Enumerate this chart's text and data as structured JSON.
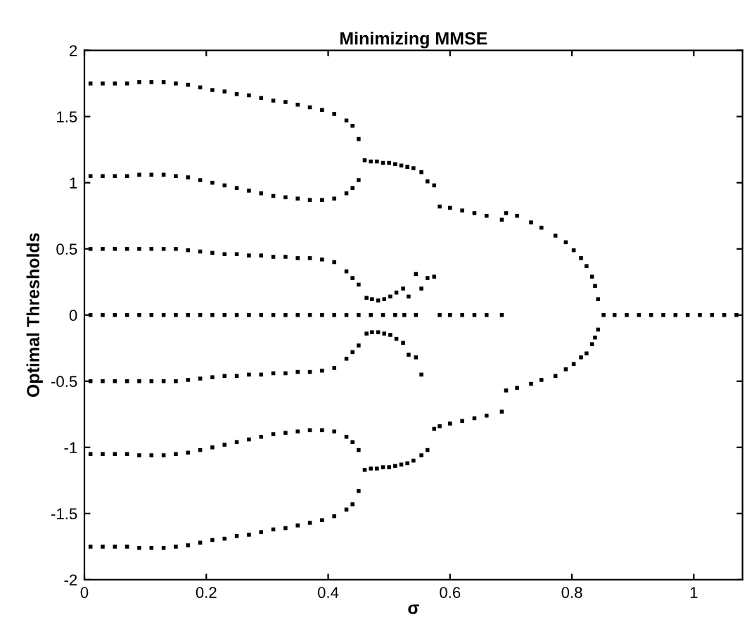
{
  "chart_data": {
    "type": "scatter",
    "title": "Minimizing MMSE",
    "xlabel": "σ",
    "ylabel": "Optimal Thresholds",
    "xlim": [
      0,
      1.08
    ],
    "ylim": [
      -2,
      2
    ],
    "xticks": [
      0,
      0.2,
      0.4,
      0.6,
      0.8,
      1
    ],
    "yticks": [
      -2,
      -1.5,
      -1,
      -0.5,
      0,
      0.5,
      1,
      1.5,
      2
    ],
    "grid": false,
    "legend": false,
    "marker": "square",
    "series": [
      {
        "color": "#000000",
        "x": [
          0.01,
          0.03,
          0.05,
          0.07,
          0.09,
          0.11,
          0.13,
          0.15,
          0.17,
          0.19,
          0.21,
          0.23,
          0.25,
          0.27,
          0.29,
          0.31,
          0.33,
          0.35,
          0.37,
          0.39,
          0.41,
          0.43,
          0.44,
          0.45
        ],
        "values": [
          1.75,
          1.75,
          1.75,
          1.75,
          1.76,
          1.76,
          1.76,
          1.75,
          1.74,
          1.72,
          1.7,
          1.69,
          1.67,
          1.66,
          1.64,
          1.62,
          1.61,
          1.59,
          1.57,
          1.55,
          1.52,
          1.47,
          1.43,
          1.33
        ]
      },
      {
        "color": "#000000",
        "x": [
          0.01,
          0.03,
          0.05,
          0.07,
          0.09,
          0.11,
          0.13,
          0.15,
          0.17,
          0.19,
          0.21,
          0.23,
          0.25,
          0.27,
          0.29,
          0.31,
          0.33,
          0.35,
          0.37,
          0.39,
          0.41,
          0.43,
          0.44,
          0.45
        ],
        "values": [
          1.05,
          1.05,
          1.05,
          1.05,
          1.06,
          1.06,
          1.06,
          1.05,
          1.04,
          1.02,
          1.0,
          0.98,
          0.96,
          0.94,
          0.92,
          0.9,
          0.89,
          0.88,
          0.87,
          0.87,
          0.88,
          0.92,
          0.96,
          1.02
        ]
      },
      {
        "color": "#000000",
        "x": [
          0.01,
          0.03,
          0.05,
          0.07,
          0.09,
          0.11,
          0.13,
          0.15,
          0.17,
          0.19,
          0.21,
          0.23,
          0.25,
          0.27,
          0.29,
          0.31,
          0.33,
          0.35,
          0.37,
          0.39,
          0.41,
          0.43,
          0.44,
          0.45
        ],
        "values": [
          0.5,
          0.5,
          0.5,
          0.5,
          0.5,
          0.5,
          0.5,
          0.5,
          0.49,
          0.48,
          0.47,
          0.46,
          0.46,
          0.45,
          0.45,
          0.44,
          0.44,
          0.43,
          0.43,
          0.42,
          0.4,
          0.33,
          0.28,
          0.23
        ]
      },
      {
        "color": "#000000",
        "x": [
          0.01,
          0.03,
          0.05,
          0.07,
          0.09,
          0.11,
          0.13,
          0.15,
          0.17,
          0.19,
          0.21,
          0.23,
          0.25,
          0.27,
          0.29,
          0.31,
          0.33,
          0.35,
          0.37,
          0.39,
          0.41,
          0.43,
          0.44,
          0.45
        ],
        "values": [
          -0.5,
          -0.5,
          -0.5,
          -0.5,
          -0.5,
          -0.5,
          -0.5,
          -0.5,
          -0.49,
          -0.48,
          -0.47,
          -0.46,
          -0.46,
          -0.45,
          -0.45,
          -0.44,
          -0.44,
          -0.43,
          -0.43,
          -0.42,
          -0.4,
          -0.33,
          -0.28,
          -0.23
        ]
      },
      {
        "color": "#000000",
        "x": [
          0.01,
          0.03,
          0.05,
          0.07,
          0.09,
          0.11,
          0.13,
          0.15,
          0.17,
          0.19,
          0.21,
          0.23,
          0.25,
          0.27,
          0.29,
          0.31,
          0.33,
          0.35,
          0.37,
          0.39,
          0.41,
          0.43,
          0.44,
          0.45
        ],
        "values": [
          -1.05,
          -1.05,
          -1.05,
          -1.05,
          -1.06,
          -1.06,
          -1.06,
          -1.05,
          -1.04,
          -1.02,
          -1.0,
          -0.98,
          -0.96,
          -0.94,
          -0.92,
          -0.9,
          -0.89,
          -0.88,
          -0.87,
          -0.87,
          -0.88,
          -0.92,
          -0.96,
          -1.02
        ]
      },
      {
        "color": "#000000",
        "x": [
          0.01,
          0.03,
          0.05,
          0.07,
          0.09,
          0.11,
          0.13,
          0.15,
          0.17,
          0.19,
          0.21,
          0.23,
          0.25,
          0.27,
          0.29,
          0.31,
          0.33,
          0.35,
          0.37,
          0.39,
          0.41,
          0.43,
          0.44,
          0.45
        ],
        "values": [
          -1.75,
          -1.75,
          -1.75,
          -1.75,
          -1.76,
          -1.76,
          -1.76,
          -1.75,
          -1.74,
          -1.72,
          -1.7,
          -1.69,
          -1.67,
          -1.66,
          -1.64,
          -1.62,
          -1.61,
          -1.59,
          -1.57,
          -1.55,
          -1.52,
          -1.47,
          -1.43,
          -1.33
        ]
      },
      {
        "color": "#000000",
        "x": [
          0.46,
          0.47,
          0.48,
          0.49,
          0.5,
          0.51,
          0.52,
          0.53,
          0.54,
          0.553,
          0.563,
          0.574
        ],
        "values": [
          1.17,
          1.16,
          1.16,
          1.15,
          1.15,
          1.14,
          1.13,
          1.12,
          1.11,
          1.08,
          1.01,
          0.98
        ]
      },
      {
        "color": "#000000",
        "x": [
          0.46,
          0.47,
          0.48,
          0.49,
          0.5,
          0.51,
          0.52,
          0.53,
          0.54,
          0.553,
          0.563,
          0.574
        ],
        "values": [
          -1.17,
          -1.16,
          -1.16,
          -1.15,
          -1.15,
          -1.14,
          -1.13,
          -1.12,
          -1.1,
          -1.06,
          -1.02,
          -0.86
        ]
      },
      {
        "color": "#000000",
        "x": [
          0.463,
          0.472,
          0.482,
          0.492,
          0.502,
          0.512,
          0.523,
          0.532,
          0.544,
          0.553,
          0.563,
          0.574
        ],
        "values": [
          0.13,
          0.12,
          0.11,
          0.12,
          0.14,
          0.17,
          0.2,
          0.14,
          0.31,
          0.2,
          0.28,
          0.29
        ]
      },
      {
        "color": "#000000",
        "x": [
          0.463,
          0.472,
          0.482,
          0.492,
          0.502,
          0.512,
          0.523,
          0.532,
          0.544,
          0.553
        ],
        "values": [
          -0.14,
          -0.13,
          -0.13,
          -0.14,
          -0.15,
          -0.18,
          -0.21,
          -0.3,
          -0.32,
          -0.45
        ]
      },
      {
        "color": "#000000",
        "x": [
          0.583,
          0.6,
          0.62,
          0.64,
          0.66,
          0.685,
          0.692,
          0.71,
          0.733,
          0.75,
          0.773,
          0.79,
          0.803,
          0.815,
          0.824,
          0.833,
          0.838,
          0.843
        ],
        "values": [
          0.82,
          0.81,
          0.79,
          0.77,
          0.75,
          0.72,
          0.77,
          0.75,
          0.7,
          0.66,
          0.6,
          0.55,
          0.49,
          0.43,
          0.37,
          0.29,
          0.22,
          0.12
        ]
      },
      {
        "color": "#000000",
        "x": [
          0.583,
          0.6,
          0.62,
          0.64,
          0.66,
          0.685,
          0.692,
          0.71,
          0.733,
          0.75,
          0.773,
          0.79,
          0.803,
          0.815,
          0.824,
          0.833,
          0.838,
          0.843
        ],
        "values": [
          -0.84,
          -0.82,
          -0.8,
          -0.78,
          -0.76,
          -0.73,
          -0.57,
          -0.55,
          -0.52,
          -0.49,
          -0.46,
          -0.41,
          -0.37,
          -0.32,
          -0.29,
          -0.22,
          -0.17,
          -0.11
        ]
      },
      {
        "color": "#000000",
        "x": [
          0.01,
          0.03,
          0.05,
          0.07,
          0.09,
          0.11,
          0.13,
          0.15,
          0.17,
          0.19,
          0.21,
          0.23,
          0.25,
          0.27,
          0.29,
          0.31,
          0.33,
          0.35,
          0.37,
          0.39,
          0.41,
          0.43,
          0.45,
          0.47,
          0.49,
          0.51,
          0.525,
          0.544,
          0.583,
          0.6,
          0.62,
          0.64,
          0.66,
          0.685,
          0.852,
          0.87,
          0.89,
          0.91,
          0.93,
          0.95,
          0.97,
          0.99,
          1.01,
          1.03,
          1.05,
          1.07
        ],
        "values": [
          0,
          0,
          0,
          0,
          0,
          0,
          0,
          0,
          0,
          0,
          0,
          0,
          0,
          0,
          0,
          0,
          0,
          0,
          0,
          0,
          0,
          0,
          0,
          0,
          0,
          0,
          0,
          0,
          0,
          0,
          0,
          0,
          0,
          0,
          0,
          0,
          0,
          0,
          0,
          0,
          0,
          0,
          0,
          0,
          0,
          0
        ]
      }
    ]
  }
}
